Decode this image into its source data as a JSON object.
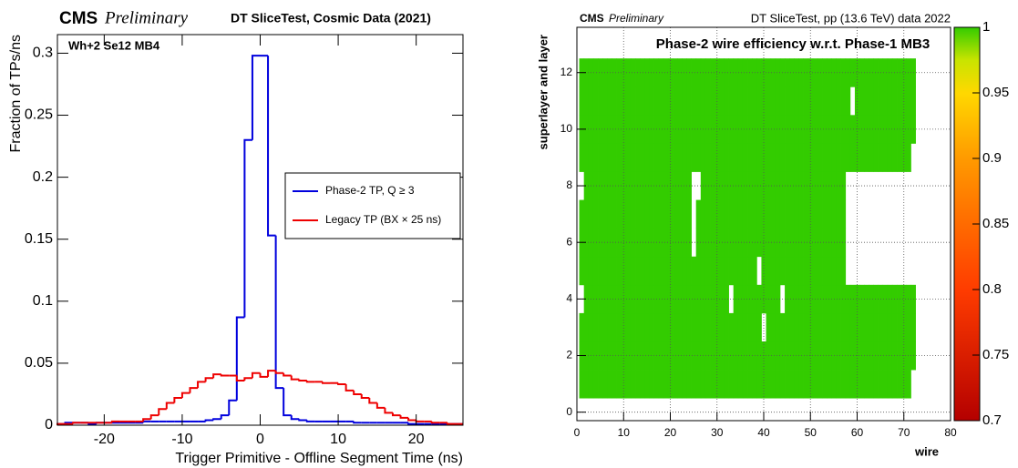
{
  "chart_data": [
    {
      "type": "histogram",
      "experiment": "CMS",
      "status": "Preliminary",
      "title": "DT SliceTest, Cosmic Data (2021)",
      "annotation": "Wh+2 Se12 MB4",
      "xlabel": "Trigger Primitive - Offline Segment Time (ns)",
      "ylabel": "Fraction of TPs/ns",
      "bins": [
        -26,
        -25,
        -24,
        -23,
        -22,
        -21,
        -20,
        -19,
        -18,
        -17,
        -16,
        -15,
        -14,
        -13,
        -12,
        -11,
        -10,
        -9,
        -8,
        -7,
        -6,
        -5,
        -4,
        -3,
        -2,
        -1,
        0,
        1,
        2,
        3,
        4,
        5,
        6,
        7,
        8,
        9,
        10,
        11,
        12,
        13,
        14,
        15,
        16,
        17,
        18,
        19,
        20,
        21,
        22,
        23,
        24,
        25,
        26
      ],
      "series": [
        {
          "name": "Phase-2 TP, Q ≥ 3",
          "color": "#0000dd",
          "values": [
            0.001,
            0.002,
            0.002,
            0.002,
            0.001,
            0.002,
            0.002,
            0.002,
            0.002,
            0.002,
            0.002,
            0.003,
            0.003,
            0.003,
            0.003,
            0.003,
            0.003,
            0.003,
            0.003,
            0.004,
            0.005,
            0.008,
            0.02,
            0.087,
            0.23,
            0.298,
            0.298,
            0.153,
            0.03,
            0.008,
            0.005,
            0.004,
            0.003,
            0.003,
            0.003,
            0.003,
            0.003,
            0.003,
            0.002,
            0.002,
            0.002,
            0.002,
            0.002,
            0.002,
            0.002,
            0.001,
            0.001,
            0.001,
            0.001,
            0.001,
            0.001,
            0.001
          ]
        },
        {
          "name": "Legacy TP (BX × 25 ns)",
          "color": "#ee0000",
          "values": [
            0.001,
            0.001,
            0.002,
            0.002,
            0.002,
            0.002,
            0.002,
            0.003,
            0.003,
            0.003,
            0.003,
            0.005,
            0.008,
            0.013,
            0.018,
            0.022,
            0.026,
            0.03,
            0.035,
            0.038,
            0.041,
            0.04,
            0.04,
            0.036,
            0.038,
            0.042,
            0.039,
            0.044,
            0.042,
            0.04,
            0.037,
            0.036,
            0.035,
            0.035,
            0.034,
            0.034,
            0.033,
            0.028,
            0.025,
            0.022,
            0.018,
            0.014,
            0.01,
            0.008,
            0.006,
            0.004,
            0.003,
            0.003,
            0.002,
            0.002,
            0.001,
            0.001
          ]
        }
      ],
      "xlim": [
        -26,
        26
      ],
      "xticks": [
        -20,
        -10,
        0,
        10,
        20
      ],
      "ylim": [
        0,
        0.315
      ],
      "yticks": [
        0,
        0.05,
        0.1,
        0.15,
        0.2,
        0.25,
        0.3
      ],
      "legend": "right",
      "grid": false
    },
    {
      "type": "heatmap",
      "experiment": "CMS",
      "status": "Preliminary",
      "subtitle": "DT SliceTest, pp (13.6 TeV) data 2022",
      "title": "Phase-2 wire efficiency w.r.t. Phase-1 MB3",
      "xlabel": "wire",
      "ylabel": "superlayer and layer",
      "x": [
        1,
        2,
        3,
        4,
        5,
        6,
        7,
        8,
        9,
        10,
        11,
        12,
        13,
        14,
        15,
        16,
        17,
        18,
        19,
        20,
        21,
        22,
        23,
        24,
        25,
        26,
        27,
        28,
        29,
        30,
        31,
        32,
        33,
        34,
        35,
        36,
        37,
        38,
        39,
        40,
        41,
        42,
        43,
        44,
        45,
        46,
        47,
        48,
        49,
        50,
        51,
        52,
        53,
        54,
        55,
        56,
        57,
        58,
        59,
        60,
        61,
        62,
        63,
        64,
        65,
        66,
        67,
        68,
        69,
        70,
        71,
        72
      ],
      "y": [
        1,
        2,
        3,
        4,
        5,
        6,
        7,
        8,
        9,
        10,
        11,
        12
      ],
      "z": [
        [
          1,
          1,
          1,
          1,
          1,
          1,
          1,
          1,
          1,
          1,
          1,
          1,
          1,
          1,
          1,
          1,
          1,
          1,
          1,
          1,
          1,
          1,
          1,
          1,
          1,
          1,
          1,
          1,
          1,
          1,
          1,
          1,
          1,
          1,
          1,
          1,
          1,
          1,
          1,
          1,
          1,
          1,
          1,
          1,
          1,
          1,
          1,
          1,
          1,
          1,
          1,
          1,
          1,
          1,
          1,
          1,
          1,
          1,
          1,
          1,
          1,
          1,
          1,
          1,
          1,
          1,
          1,
          1,
          1,
          1,
          1,
          null
        ],
        [
          1,
          1,
          1,
          1,
          1,
          1,
          1,
          1,
          1,
          1,
          1,
          1,
          1,
          1,
          1,
          1,
          1,
          1,
          1,
          1,
          1,
          1,
          1,
          1,
          1,
          1,
          1,
          1,
          1,
          1,
          1,
          1,
          1,
          1,
          1,
          1,
          1,
          1,
          1,
          1,
          1,
          1,
          1,
          1,
          1,
          1,
          1,
          1,
          1,
          1,
          1,
          1,
          1,
          1,
          1,
          1,
          1,
          1,
          1,
          1,
          1,
          1,
          1,
          1,
          1,
          1,
          1,
          1,
          1,
          1,
          1,
          1
        ],
        [
          1,
          1,
          1,
          1,
          1,
          1,
          1,
          1,
          1,
          1,
          1,
          1,
          1,
          1,
          1,
          1,
          1,
          1,
          1,
          1,
          1,
          1,
          1,
          1,
          1,
          1,
          1,
          1,
          1,
          1,
          1,
          1,
          1,
          1,
          1,
          1,
          1,
          1,
          1,
          null,
          1,
          1,
          1,
          1,
          1,
          1,
          1,
          1,
          1,
          1,
          1,
          1,
          1,
          1,
          1,
          1,
          1,
          1,
          1,
          1,
          1,
          1,
          1,
          1,
          1,
          1,
          1,
          1,
          1,
          1,
          1,
          1
        ],
        [
          null,
          1,
          1,
          1,
          1,
          1,
          1,
          1,
          1,
          1,
          1,
          1,
          1,
          1,
          1,
          1,
          1,
          1,
          1,
          1,
          1,
          1,
          1,
          1,
          1,
          1,
          1,
          1,
          1,
          1,
          1,
          1,
          null,
          1,
          1,
          1,
          1,
          1,
          1,
          1,
          1,
          1,
          1,
          null,
          1,
          1,
          1,
          1,
          1,
          1,
          1,
          1,
          1,
          1,
          1,
          1,
          1,
          1,
          1,
          1,
          1,
          1,
          1,
          1,
          1,
          1,
          1,
          1,
          1,
          1,
          1,
          1
        ],
        [
          1,
          1,
          1,
          1,
          1,
          1,
          1,
          1,
          1,
          1,
          1,
          1,
          1,
          1,
          1,
          1,
          1,
          1,
          1,
          1,
          1,
          1,
          1,
          1,
          1,
          1,
          1,
          1,
          1,
          1,
          1,
          1,
          1,
          1,
          1,
          1,
          1,
          1,
          null,
          1,
          1,
          1,
          1,
          1,
          1,
          1,
          1,
          1,
          1,
          1,
          1,
          1,
          1,
          1,
          1,
          1,
          1,
          null,
          null,
          null,
          null,
          null,
          null,
          null,
          null,
          null,
          null,
          null,
          null,
          null,
          null,
          null
        ],
        [
          1,
          1,
          1,
          1,
          1,
          1,
          1,
          1,
          1,
          1,
          1,
          1,
          1,
          1,
          1,
          1,
          1,
          1,
          1,
          1,
          1,
          1,
          1,
          1,
          null,
          1,
          1,
          1,
          1,
          1,
          1,
          1,
          1,
          1,
          1,
          1,
          1,
          1,
          1,
          1,
          1,
          1,
          1,
          1,
          1,
          1,
          1,
          1,
          1,
          1,
          1,
          1,
          1,
          1,
          1,
          1,
          1,
          null,
          null,
          null,
          null,
          null,
          null,
          null,
          null,
          null,
          null,
          null,
          null,
          null,
          null,
          null
        ],
        [
          1,
          1,
          1,
          1,
          1,
          1,
          1,
          1,
          1,
          1,
          1,
          1,
          1,
          1,
          1,
          1,
          1,
          1,
          1,
          1,
          1,
          1,
          1,
          1,
          null,
          1,
          1,
          1,
          1,
          1,
          1,
          1,
          1,
          1,
          1,
          1,
          1,
          1,
          1,
          1,
          1,
          1,
          1,
          1,
          1,
          1,
          1,
          1,
          1,
          1,
          1,
          1,
          1,
          1,
          1,
          1,
          1,
          null,
          null,
          null,
          null,
          null,
          null,
          null,
          null,
          null,
          null,
          null,
          null,
          null,
          null,
          null
        ],
        [
          null,
          1,
          1,
          1,
          1,
          1,
          1,
          1,
          1,
          1,
          1,
          1,
          1,
          1,
          1,
          1,
          1,
          1,
          1,
          1,
          1,
          1,
          1,
          1,
          null,
          null,
          1,
          1,
          1,
          1,
          1,
          1,
          1,
          1,
          1,
          1,
          1,
          1,
          1,
          1,
          1,
          1,
          1,
          1,
          1,
          1,
          1,
          1,
          1,
          1,
          1,
          1,
          1,
          1,
          1,
          1,
          1,
          null,
          null,
          null,
          null,
          null,
          null,
          null,
          null,
          null,
          null,
          null,
          null,
          null,
          null,
          null
        ],
        [
          1,
          1,
          1,
          1,
          1,
          1,
          1,
          1,
          1,
          1,
          1,
          1,
          1,
          1,
          1,
          1,
          1,
          1,
          1,
          1,
          1,
          1,
          1,
          1,
          1,
          1,
          1,
          1,
          1,
          1,
          1,
          1,
          1,
          1,
          1,
          1,
          1,
          1,
          1,
          1,
          1,
          1,
          1,
          1,
          1,
          1,
          1,
          1,
          1,
          1,
          1,
          1,
          1,
          1,
          1,
          1,
          1,
          1,
          1,
          1,
          1,
          1,
          1,
          1,
          1,
          1,
          1,
          1,
          1,
          1,
          1,
          null
        ],
        [
          1,
          1,
          1,
          1,
          1,
          1,
          1,
          1,
          1,
          1,
          1,
          1,
          1,
          1,
          1,
          1,
          1,
          1,
          1,
          1,
          1,
          1,
          1,
          1,
          1,
          1,
          1,
          1,
          1,
          1,
          1,
          1,
          1,
          1,
          1,
          1,
          1,
          1,
          1,
          1,
          1,
          1,
          1,
          1,
          1,
          1,
          1,
          1,
          1,
          1,
          1,
          1,
          1,
          1,
          1,
          1,
          1,
          1,
          1,
          1,
          1,
          1,
          1,
          1,
          1,
          1,
          1,
          1,
          1,
          1,
          1,
          1
        ],
        [
          1,
          1,
          1,
          1,
          1,
          1,
          1,
          1,
          1,
          1,
          1,
          1,
          1,
          1,
          1,
          1,
          1,
          1,
          1,
          1,
          1,
          1,
          1,
          1,
          1,
          1,
          1,
          1,
          1,
          1,
          1,
          1,
          1,
          1,
          1,
          1,
          1,
          1,
          1,
          1,
          1,
          1,
          1,
          1,
          1,
          1,
          1,
          1,
          1,
          1,
          1,
          1,
          1,
          1,
          1,
          1,
          1,
          1,
          null,
          1,
          1,
          1,
          1,
          1,
          1,
          1,
          1,
          1,
          1,
          1,
          1,
          1
        ],
        [
          1,
          1,
          1,
          1,
          1,
          1,
          1,
          1,
          1,
          1,
          1,
          1,
          1,
          1,
          1,
          1,
          1,
          1,
          1,
          1,
          1,
          1,
          1,
          1,
          1,
          1,
          1,
          1,
          1,
          1,
          1,
          1,
          1,
          1,
          1,
          1,
          1,
          1,
          1,
          1,
          1,
          1,
          1,
          1,
          1,
          1,
          1,
          1,
          1,
          1,
          1,
          1,
          1,
          1,
          1,
          1,
          1,
          1,
          1,
          1,
          1,
          1,
          1,
          1,
          1,
          1,
          1,
          1,
          1,
          1,
          1,
          1
        ]
      ],
      "xlim": [
        0,
        80
      ],
      "xticks": [
        0,
        10,
        20,
        30,
        40,
        50,
        60,
        70,
        80
      ],
      "ylim": [
        -0.3,
        13.6
      ],
      "yticks": [
        0,
        2,
        4,
        6,
        8,
        10,
        12
      ],
      "zlim": [
        0.7,
        1
      ],
      "zticks": [
        0.7,
        0.75,
        0.8,
        0.85,
        0.9,
        0.95,
        1
      ],
      "colorscale": [
        [
          0.7,
          "#b40000"
        ],
        [
          0.8,
          "#ff3c00"
        ],
        [
          0.9,
          "#ff9a00"
        ],
        [
          0.95,
          "#ffd800"
        ],
        [
          0.975,
          "#c8e400"
        ],
        [
          1,
          "#33cc00"
        ]
      ],
      "grid": true
    }
  ]
}
